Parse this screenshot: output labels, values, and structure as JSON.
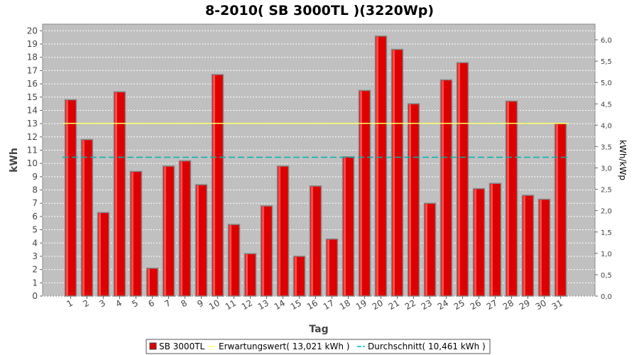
{
  "chart_data": {
    "type": "bar",
    "title": "8-2010( SB 3000TL )(3220Wp)",
    "xlabel": "Tag",
    "ylabel": "kWh",
    "y2label": "kWh/kWp",
    "categories": [
      "1",
      "2",
      "3",
      "4",
      "5",
      "6",
      "7",
      "8",
      "9",
      "10",
      "11",
      "12",
      "13",
      "14",
      "15",
      "16",
      "17",
      "18",
      "19",
      "20",
      "21",
      "22",
      "23",
      "24",
      "25",
      "26",
      "27",
      "28",
      "29",
      "30",
      "31"
    ],
    "series": [
      {
        "name": "SB 3000TL",
        "color": "#dd0000",
        "values": [
          14.8,
          11.8,
          6.3,
          15.4,
          9.4,
          2.1,
          9.8,
          10.2,
          8.4,
          16.7,
          5.4,
          3.2,
          6.8,
          9.8,
          3.0,
          8.3,
          4.3,
          10.5,
          15.5,
          19.6,
          18.6,
          14.5,
          7.0,
          16.3,
          17.6,
          8.1,
          8.5,
          14.7,
          7.6,
          7.3,
          13.0
        ]
      }
    ],
    "reference_lines": [
      {
        "name": "Erwartungswert( 13,021 kWh )",
        "value": 13.021,
        "color": "#ffff66",
        "style": "solid"
      },
      {
        "name": "Durchschnitt( 10,461 kWh )",
        "value": 10.461,
        "color": "#00b3b3",
        "style": "dashed"
      }
    ],
    "ylim": [
      0,
      20.5
    ],
    "yticks": [
      "0",
      "1",
      "2",
      "3",
      "4",
      "5",
      "6",
      "7",
      "8",
      "9",
      "10",
      "11",
      "12",
      "13",
      "14",
      "15",
      "16",
      "17",
      "18",
      "19",
      "20"
    ],
    "y2ticks": [
      "0,0",
      "0,5",
      "1,0",
      "1,5",
      "2,0",
      "2,5",
      "3,0",
      "3,5",
      "4,0",
      "4,5",
      "5,0",
      "5,5",
      "6,0"
    ],
    "grid": true,
    "legend_position": "bottom"
  },
  "colors": {
    "plot_background": "#c0c0c0",
    "grid": "#ffffff",
    "bar": "#dd0000"
  }
}
